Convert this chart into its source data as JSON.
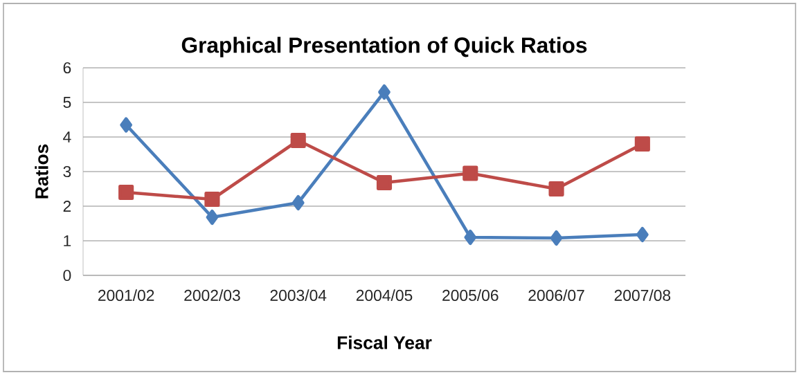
{
  "chart_data": {
    "type": "line",
    "title": "Graphical Presentation of Quick Ratios",
    "xlabel": "Fiscal Year",
    "ylabel": "Ratios",
    "categories": [
      "2001/02",
      "2002/03",
      "2003/04",
      "2004/05",
      "2005/06",
      "2006/07",
      "2007/08"
    ],
    "series": [
      {
        "color": "#4a7ebb",
        "marker": "diamond",
        "values": [
          4.35,
          1.68,
          2.1,
          5.3,
          1.1,
          1.08,
          1.18
        ]
      },
      {
        "color": "#be4b48",
        "marker": "square",
        "values": [
          2.4,
          2.2,
          3.9,
          2.68,
          2.95,
          2.5,
          3.8
        ]
      }
    ],
    "ylim": [
      0,
      6
    ],
    "yticks": [
      0,
      1,
      2,
      3,
      4,
      5,
      6
    ],
    "grid": "y"
  }
}
